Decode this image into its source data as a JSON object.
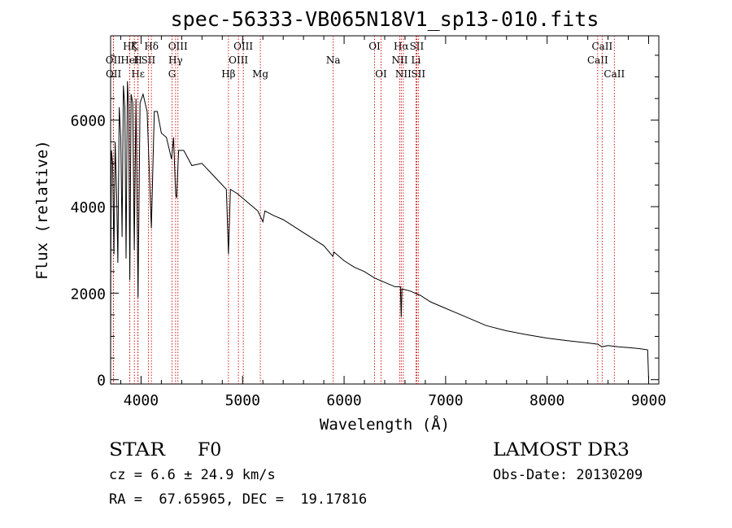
{
  "chart_data": {
    "type": "line",
    "title": "spec-56333-VB065N18V1_sp13-010.fits",
    "xlabel": "Wavelength (Å)",
    "ylabel": "Flux (relative)",
    "xlim": [
      3700,
      9100
    ],
    "ylim": [
      -100,
      7950
    ],
    "x_ticks": [
      {
        "value": 4000,
        "label": "4000"
      },
      {
        "value": 5000,
        "label": "5000"
      },
      {
        "value": 6000,
        "label": "6000"
      },
      {
        "value": 7000,
        "label": "7000"
      },
      {
        "value": 8000,
        "label": "8000"
      },
      {
        "value": 9000,
        "label": "9000"
      }
    ],
    "y_ticks": [
      {
        "value": 0,
        "label": "0"
      },
      {
        "value": 2000,
        "label": "2000"
      },
      {
        "value": 4000,
        "label": "4000"
      },
      {
        "value": 6000,
        "label": "6000"
      }
    ],
    "series": [
      {
        "name": "flux",
        "points": [
          [
            3700,
            0
          ],
          [
            3702,
            2500
          ],
          [
            3708,
            5300
          ],
          [
            3720,
            5000
          ],
          [
            3733,
            2900
          ],
          [
            3745,
            5500
          ],
          [
            3760,
            4200
          ],
          [
            3771,
            2700
          ],
          [
            3785,
            6300
          ],
          [
            3800,
            5600
          ],
          [
            3813,
            3300
          ],
          [
            3826,
            6800
          ],
          [
            3840,
            6300
          ],
          [
            3852,
            2800
          ],
          [
            3866,
            6900
          ],
          [
            3878,
            6300
          ],
          [
            3889,
            2300
          ],
          [
            3902,
            6600
          ],
          [
            3918,
            6400
          ],
          [
            3933,
            3000
          ],
          [
            3950,
            6500
          ],
          [
            3970,
            1900
          ],
          [
            3990,
            6400
          ],
          [
            4020,
            6600
          ],
          [
            4060,
            6200
          ],
          [
            4101,
            3500
          ],
          [
            4130,
            6200
          ],
          [
            4160,
            6200
          ],
          [
            4200,
            5700
          ],
          [
            4250,
            5600
          ],
          [
            4300,
            5100
          ],
          [
            4320,
            5600
          ],
          [
            4340,
            4300
          ],
          [
            4350,
            4200
          ],
          [
            4370,
            5300
          ],
          [
            4420,
            5300
          ],
          [
            4500,
            4950
          ],
          [
            4600,
            5000
          ],
          [
            4700,
            4750
          ],
          [
            4800,
            4500
          ],
          [
            4840,
            4400
          ],
          [
            4861,
            2900
          ],
          [
            4880,
            4400
          ],
          [
            4950,
            4300
          ],
          [
            5050,
            4100
          ],
          [
            5150,
            3900
          ],
          [
            5200,
            3650
          ],
          [
            5220,
            3900
          ],
          [
            5300,
            3800
          ],
          [
            5400,
            3700
          ],
          [
            5500,
            3550
          ],
          [
            5600,
            3400
          ],
          [
            5700,
            3250
          ],
          [
            5800,
            3100
          ],
          [
            5890,
            2850
          ],
          [
            5900,
            2950
          ],
          [
            6000,
            2750
          ],
          [
            6100,
            2600
          ],
          [
            6200,
            2500
          ],
          [
            6300,
            2350
          ],
          [
            6400,
            2250
          ],
          [
            6500,
            2150
          ],
          [
            6555,
            2150
          ],
          [
            6563,
            1450
          ],
          [
            6570,
            2100
          ],
          [
            6650,
            2050
          ],
          [
            6750,
            1950
          ],
          [
            6850,
            1800
          ],
          [
            7000,
            1650
          ],
          [
            7200,
            1450
          ],
          [
            7400,
            1250
          ],
          [
            7600,
            1130
          ],
          [
            7800,
            1040
          ],
          [
            8000,
            960
          ],
          [
            8200,
            900
          ],
          [
            8400,
            850
          ],
          [
            8500,
            820
          ],
          [
            8540,
            760
          ],
          [
            8600,
            790
          ],
          [
            8700,
            760
          ],
          [
            8800,
            740
          ],
          [
            8900,
            720
          ],
          [
            8990,
            690
          ],
          [
            9000,
            0
          ]
        ]
      }
    ],
    "line_markers": [
      {
        "label": "Hα",
        "wavelength": 6563,
        "row": 0
      },
      {
        "label": "Hβ",
        "wavelength": 4861,
        "row": 2
      },
      {
        "label": "Hγ",
        "wavelength": 4340,
        "row": 1
      },
      {
        "label": "Hδ",
        "wavelength": 4102,
        "row": 0
      },
      {
        "label": "Hε",
        "wavelength": 3970,
        "row": 2
      },
      {
        "label": "Hζ",
        "wavelength": 3889,
        "row": 0
      },
      {
        "label": "K",
        "wavelength": 3934,
        "row": 0
      },
      {
        "label": "H",
        "wavelength": 3969,
        "row": 1
      },
      {
        "label": "G",
        "wavelength": 4305,
        "row": 2
      },
      {
        "label": "Mg",
        "wavelength": 5175,
        "row": 2
      },
      {
        "label": "Na",
        "wavelength": 5893,
        "row": 1
      },
      {
        "label": "OII",
        "wavelength": 3727,
        "row": 1
      },
      {
        "label": "OII",
        "wavelength": 3729,
        "row": 2
      },
      {
        "label": "HeI",
        "wavelength": 3889,
        "row": 1
      },
      {
        "label": "SII",
        "wavelength": 4072,
        "row": 1
      },
      {
        "label": "OIII",
        "wavelength": 4363,
        "row": 0
      },
      {
        "label": "OIII",
        "wavelength": 4959,
        "row": 1
      },
      {
        "label": "OIII",
        "wavelength": 5007,
        "row": 0
      },
      {
        "label": "OI",
        "wavelength": 6300,
        "row": 0
      },
      {
        "label": "OI",
        "wavelength": 6364,
        "row": 2
      },
      {
        "label": "NII",
        "wavelength": 6548,
        "row": 1
      },
      {
        "label": "NII",
        "wavelength": 6583,
        "row": 2
      },
      {
        "label": "SII",
        "wavelength": 6716,
        "row": 0
      },
      {
        "label": "SII",
        "wavelength": 6731,
        "row": 2
      },
      {
        "label": "Li",
        "wavelength": 6708,
        "row": 1
      },
      {
        "label": "CaII",
        "wavelength": 8498,
        "row": 1
      },
      {
        "label": "CaII",
        "wavelength": 8542,
        "row": 0
      },
      {
        "label": "CaII",
        "wavelength": 8662,
        "row": 2
      }
    ],
    "colors": {
      "spectrum": "#000000",
      "markers": "#cc0000",
      "axes": "#000000"
    }
  },
  "info": {
    "object_class": "STAR",
    "subclass": "F0",
    "survey": "LAMOST DR3",
    "redshift": "cz = 6.6 ± 24.9 km/s",
    "obs_date": "Obs-Date: 20130209",
    "coords": "RA =  67.65965, DEC =  19.17816"
  }
}
